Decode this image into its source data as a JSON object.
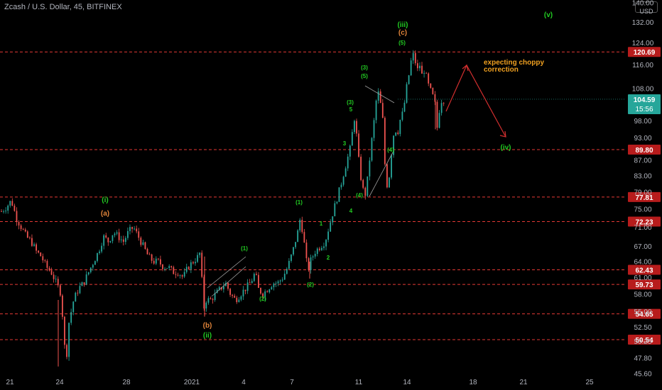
{
  "header": {
    "title": "Zcash / U.S. Dollar, 45, BITFINEX",
    "currency": "USD"
  },
  "colors": {
    "background": "#000000",
    "up_candle": "#26a69a",
    "down_candle": "#ef5350",
    "level_line": "#e53935",
    "wave_green": "#22cc22",
    "wave_orange": "#e0843a",
    "annotation": "#f0a020",
    "current_price_badge": "#26a69a",
    "projection_arrow": "#d32f2f"
  },
  "chart_data": {
    "type": "candlestick",
    "x_ticks": [
      "21",
      "24",
      "28",
      "2021",
      "4",
      "7",
      "11",
      "14",
      "18",
      "21",
      "25"
    ],
    "y_ticks": [
      "140.00",
      "132.00",
      "124.00",
      "116.00",
      "108.00",
      "98.00",
      "93.00",
      "87.00",
      "83.00",
      "79.00",
      "75.00",
      "71.00",
      "67.00",
      "64.00",
      "61.00",
      "58.00",
      "55.00",
      "52.50",
      "50.25",
      "47.80",
      "45.60"
    ],
    "ylim": [
      45.6,
      140
    ],
    "y_scale": "log",
    "price_levels": [
      120.69,
      89.8,
      77.81,
      72.23,
      62.43,
      59.73,
      54.65,
      50.54
    ],
    "current_price": "104.59",
    "countdown": "15:56",
    "wave_labels": [
      {
        "text": "(iii)",
        "color": "green"
      },
      {
        "text": "(c)",
        "color": "orange"
      },
      {
        "text": "(v)",
        "color": "green"
      },
      {
        "text": "(iv)",
        "color": "green"
      },
      {
        "text": "(i)",
        "color": "green"
      },
      {
        "text": "(a)",
        "color": "orange"
      },
      {
        "text": "(b)",
        "color": "orange"
      },
      {
        "text": "(ii)",
        "color": "green"
      },
      {
        "text": "(1)",
        "color": "green"
      },
      {
        "text": "(2)",
        "color": "green"
      },
      {
        "text": "(1)",
        "color": "green"
      },
      {
        "text": "(2)",
        "color": "green"
      },
      {
        "text": "1",
        "color": "green"
      },
      {
        "text": "2",
        "color": "green"
      },
      {
        "text": "3",
        "color": "green"
      },
      {
        "text": "4",
        "color": "green"
      },
      {
        "text": "(3)",
        "color": "green"
      },
      {
        "text": "5",
        "color": "green"
      },
      {
        "text": "(4)",
        "color": "green"
      },
      {
        "text": "(3)",
        "color": "green"
      },
      {
        "text": "(5)",
        "color": "green"
      },
      {
        "text": "(4)",
        "color": "green"
      },
      {
        "text": "(5)",
        "color": "green"
      }
    ],
    "annotation": [
      "expecting choppy",
      "correction"
    ],
    "price_path": [
      [
        0,
        74.5
      ],
      [
        4,
        75.5
      ],
      [
        8,
        77
      ],
      [
        12,
        73
      ],
      [
        16,
        71
      ],
      [
        20,
        69
      ],
      [
        24,
        68
      ],
      [
        28,
        66
      ],
      [
        32,
        65
      ],
      [
        36,
        63
      ],
      [
        40,
        62
      ],
      [
        44,
        60
      ],
      [
        48,
        58
      ],
      [
        50,
        51
      ],
      [
        52,
        47
      ],
      [
        54,
        53
      ],
      [
        56,
        55
      ],
      [
        58,
        57
      ],
      [
        62,
        59
      ],
      [
        66,
        60
      ],
      [
        70,
        62
      ],
      [
        74,
        64
      ],
      [
        78,
        66
      ],
      [
        82,
        69
      ],
      [
        86,
        68
      ],
      [
        90,
        70
      ],
      [
        94,
        69
      ],
      [
        98,
        68
      ],
      [
        102,
        70
      ],
      [
        106,
        71
      ],
      [
        110,
        69
      ],
      [
        114,
        67
      ],
      [
        118,
        65
      ],
      [
        122,
        64
      ],
      [
        126,
        64
      ],
      [
        130,
        63
      ],
      [
        134,
        63
      ],
      [
        138,
        62
      ],
      [
        142,
        62
      ],
      [
        146,
        61
      ],
      [
        150,
        63
      ],
      [
        154,
        64
      ],
      [
        158,
        65
      ],
      [
        160,
        66
      ],
      [
        162,
        55
      ],
      [
        164,
        57
      ],
      [
        168,
        57
      ],
      [
        172,
        58
      ],
      [
        176,
        59
      ],
      [
        180,
        60
      ],
      [
        184,
        58
      ],
      [
        188,
        57
      ],
      [
        192,
        58
      ],
      [
        196,
        59
      ],
      [
        200,
        60
      ],
      [
        204,
        62
      ],
      [
        206,
        59
      ],
      [
        210,
        58
      ],
      [
        214,
        59
      ],
      [
        218,
        60
      ],
      [
        222,
        60
      ],
      [
        226,
        61
      ],
      [
        230,
        63
      ],
      [
        234,
        66
      ],
      [
        238,
        70
      ],
      [
        240,
        73
      ],
      [
        242,
        70
      ],
      [
        244,
        66
      ],
      [
        246,
        62
      ],
      [
        248,
        64
      ],
      [
        252,
        66
      ],
      [
        256,
        67
      ],
      [
        260,
        68
      ],
      [
        264,
        72
      ],
      [
        268,
        76
      ],
      [
        272,
        80
      ],
      [
        276,
        85
      ],
      [
        280,
        90
      ],
      [
        282,
        95
      ],
      [
        284,
        100
      ],
      [
        286,
        90
      ],
      [
        288,
        84
      ],
      [
        290,
        80
      ],
      [
        292,
        78
      ],
      [
        294,
        82
      ],
      [
        296,
        88
      ],
      [
        298,
        94
      ],
      [
        300,
        100
      ],
      [
        302,
        108
      ],
      [
        304,
        104
      ],
      [
        306,
        100
      ],
      [
        308,
        86
      ],
      [
        310,
        80
      ],
      [
        312,
        84
      ],
      [
        314,
        92
      ],
      [
        316,
        96
      ],
      [
        318,
        94
      ],
      [
        320,
        98
      ],
      [
        322,
        100
      ],
      [
        324,
        104
      ],
      [
        326,
        110
      ],
      [
        328,
        114
      ],
      [
        330,
        120.5
      ],
      [
        332,
        118
      ],
      [
        334,
        114
      ],
      [
        336,
        116
      ],
      [
        338,
        112
      ],
      [
        340,
        115
      ],
      [
        342,
        110
      ],
      [
        344,
        108
      ],
      [
        346,
        106
      ],
      [
        348,
        104
      ],
      [
        350,
        96
      ],
      [
        352,
        102
      ],
      [
        354,
        105
      ],
      [
        356,
        104
      ]
    ]
  }
}
